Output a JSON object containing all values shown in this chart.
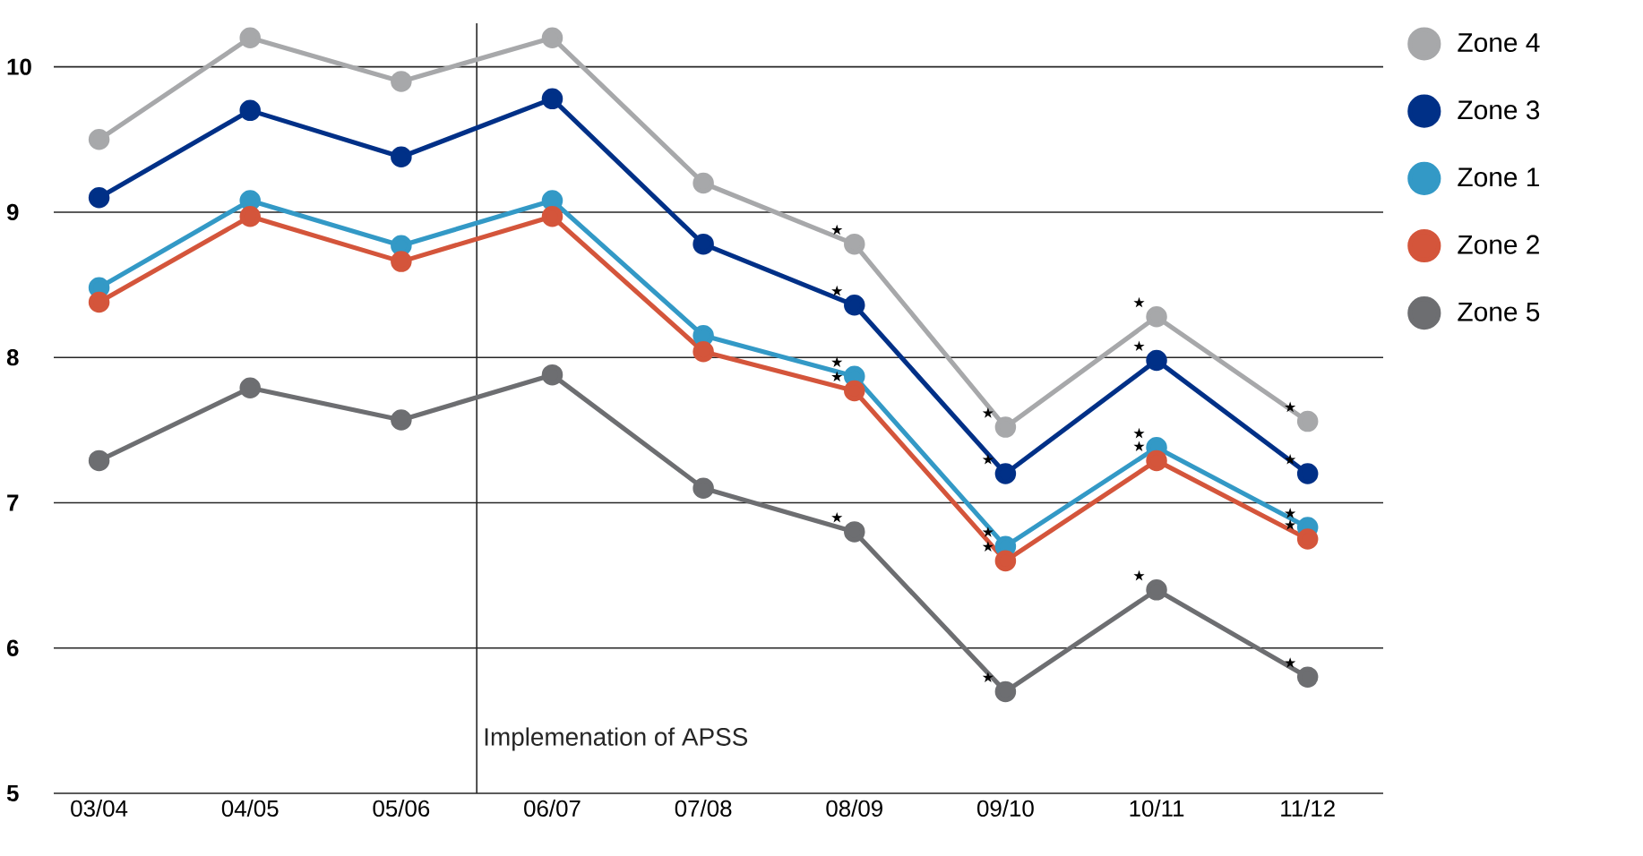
{
  "chart_data": {
    "type": "line",
    "categories": [
      "03/04",
      "04/05",
      "05/06",
      "06/07",
      "07/08",
      "08/09",
      "09/10",
      "10/11",
      "11/12"
    ],
    "series": [
      {
        "name": "Zone 4",
        "color": "#a7a8aa",
        "values": [
          9.5,
          10.2,
          9.9,
          10.2,
          9.2,
          8.78,
          7.52,
          8.28,
          7.56
        ]
      },
      {
        "name": "Zone 3",
        "color": "#003087",
        "values": [
          9.1,
          9.7,
          9.38,
          9.78,
          8.78,
          8.36,
          7.2,
          7.98,
          7.2
        ]
      },
      {
        "name": "Zone 1",
        "color": "#3399c6",
        "values": [
          8.48,
          9.08,
          8.77,
          9.08,
          8.15,
          7.87,
          6.7,
          7.38,
          6.83
        ]
      },
      {
        "name": "Zone 2",
        "color": "#d4553b",
        "values": [
          8.38,
          8.97,
          8.66,
          8.97,
          8.04,
          7.77,
          6.6,
          7.29,
          6.75
        ]
      },
      {
        "name": "Zone 5",
        "color": "#6d6e71",
        "values": [
          7.29,
          7.79,
          7.57,
          7.88,
          7.1,
          6.8,
          5.7,
          6.4,
          5.8
        ]
      }
    ],
    "ylim": [
      5,
      10.3
    ],
    "yticks": [
      5,
      6,
      7,
      8,
      9,
      10
    ],
    "grid": "y",
    "legend": "right",
    "marker": "circle",
    "line_style": "solid",
    "annotations": [
      "Implemenation of APSS",
      {
        "text": "★",
        "x": "08/09",
        "y": 8.78
      },
      {
        "text": "★",
        "x": "09/10",
        "y": 7.52
      },
      {
        "text": "★",
        "x": "10/11",
        "y": 8.28
      },
      {
        "text": "★",
        "x": "11/12",
        "y": 7.56
      },
      {
        "text": "★",
        "x": "08/09",
        "y": 8.36
      },
      {
        "text": "★",
        "x": "09/10",
        "y": 7.2
      },
      {
        "text": "★",
        "x": "10/11",
        "y": 7.98
      },
      {
        "text": "★",
        "x": "11/12",
        "y": 7.2
      },
      {
        "text": "★",
        "x": "08/09",
        "y": 7.87
      },
      {
        "text": "★",
        "x": "09/10",
        "y": 6.7
      },
      {
        "text": "★",
        "x": "10/11",
        "y": 7.38
      },
      {
        "text": "★",
        "x": "11/12",
        "y": 6.83
      },
      {
        "text": "★",
        "x": "08/09",
        "y": 7.77
      },
      {
        "text": "★",
        "x": "09/10",
        "y": 6.6
      },
      {
        "text": "★",
        "x": "10/11",
        "y": 7.29
      },
      {
        "text": "★",
        "x": "11/12",
        "y": 6.75
      },
      {
        "text": "★",
        "x": "08/09",
        "y": 6.8
      },
      {
        "text": "★",
        "x": "09/10",
        "y": 5.7
      },
      {
        "text": "★",
        "x": "10/11",
        "y": 6.4
      },
      {
        "text": "★",
        "x": "11/12",
        "y": 5.8
      }
    ]
  }
}
